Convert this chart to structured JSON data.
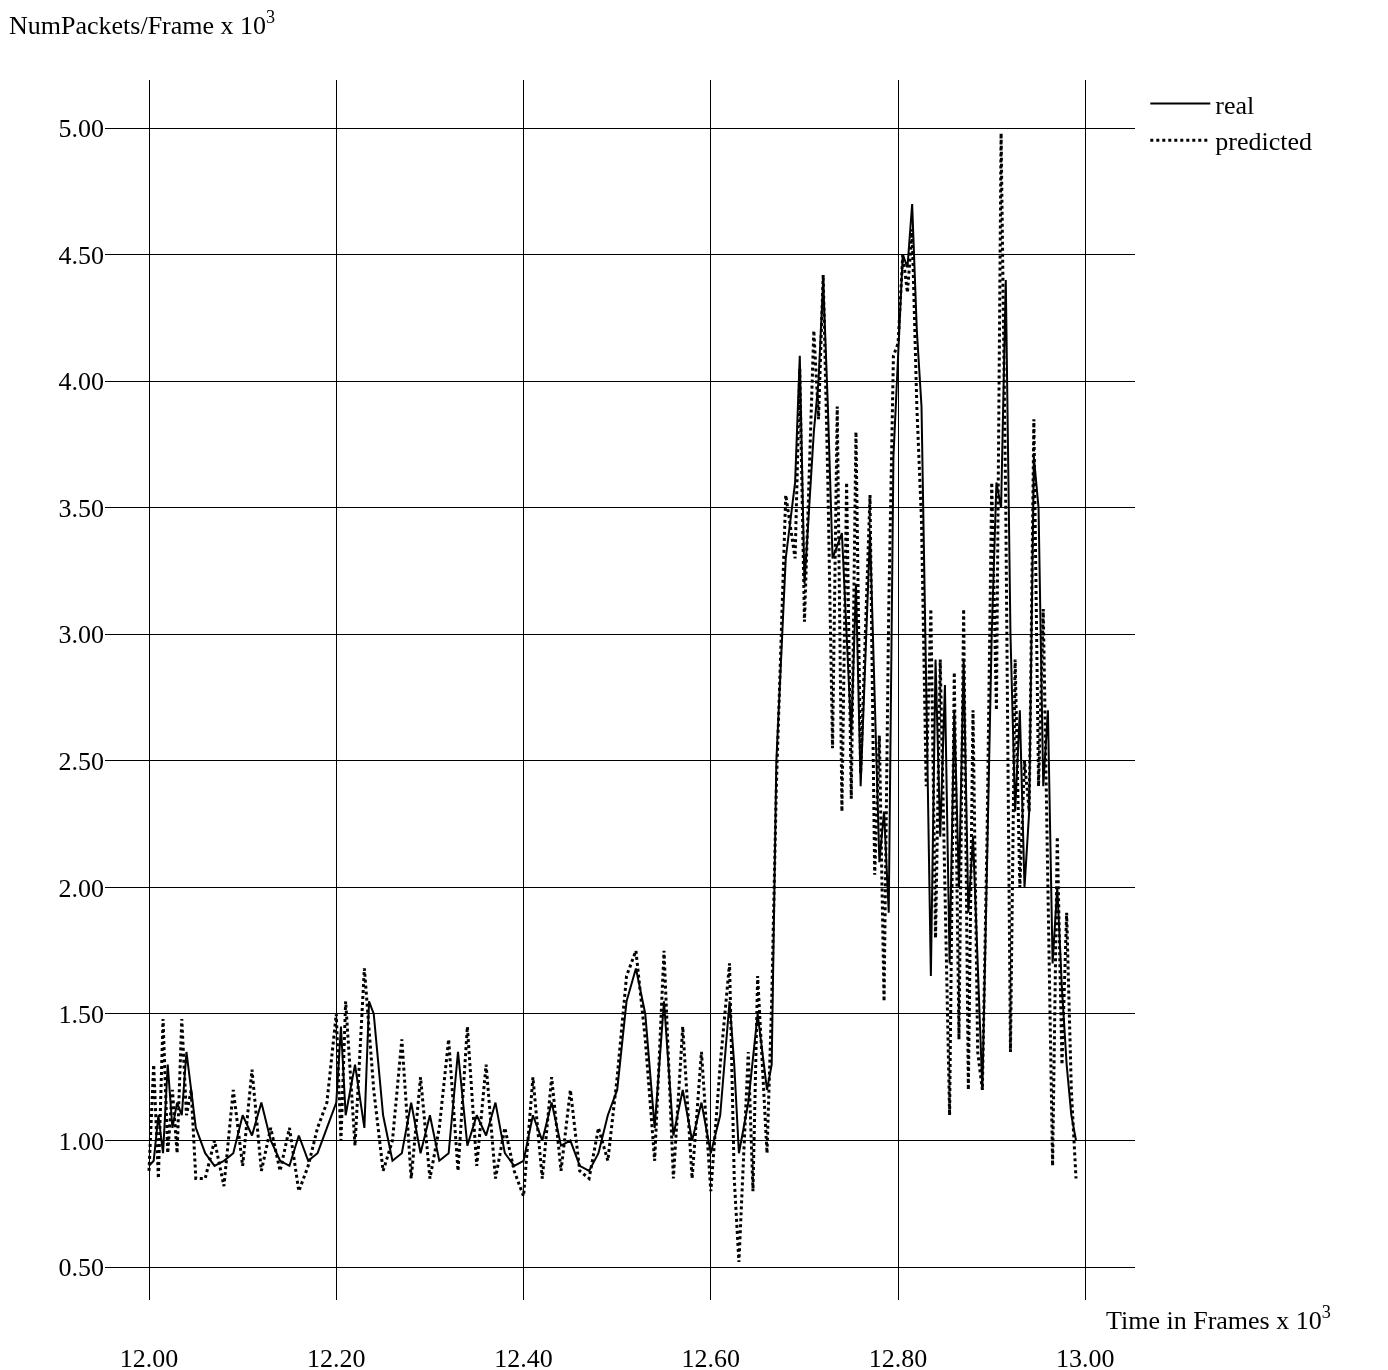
{
  "chart_data": {
    "type": "line",
    "xlabel": "Time in Frames x 10$^{3}$",
    "ylabel": "NumPackets/Frame x 10$^{3}$",
    "xlim": [
      11.953,
      13.053
    ],
    "ylim": [
      0.37,
      5.19
    ],
    "xticks": [
      {
        "value": 12.0,
        "label": "12.00"
      },
      {
        "value": 12.2,
        "label": "12.20"
      },
      {
        "value": 12.4,
        "label": "12.40"
      },
      {
        "value": 12.6,
        "label": "12.60"
      },
      {
        "value": 12.8,
        "label": "12.80"
      },
      {
        "value": 13.0,
        "label": "13.00"
      }
    ],
    "yticks": [
      {
        "value": 0.5,
        "label": "0.50"
      },
      {
        "value": 1.0,
        "label": "1.00"
      },
      {
        "value": 1.5,
        "label": "1.50"
      },
      {
        "value": 2.0,
        "label": "2.00"
      },
      {
        "value": 2.5,
        "label": "2.50"
      },
      {
        "value": 3.0,
        "label": "3.00"
      },
      {
        "value": 3.5,
        "label": "3.50"
      },
      {
        "value": 4.0,
        "label": "4.00"
      },
      {
        "value": 4.5,
        "label": "4.50"
      },
      {
        "value": 5.0,
        "label": "5.00"
      }
    ],
    "grid": true,
    "legend": "top right",
    "marker": "none",
    "x": [
      12.0,
      12.005,
      12.01,
      12.015,
      12.02,
      12.025,
      12.03,
      12.035,
      12.04,
      12.045,
      12.05,
      12.06,
      12.07,
      12.08,
      12.09,
      12.1,
      12.11,
      12.12,
      12.13,
      12.14,
      12.15,
      12.16,
      12.17,
      12.18,
      12.19,
      12.2,
      12.205,
      12.21,
      12.22,
      12.23,
      12.235,
      12.24,
      12.25,
      12.26,
      12.27,
      12.28,
      12.29,
      12.3,
      12.31,
      12.32,
      12.33,
      12.34,
      12.35,
      12.36,
      12.37,
      12.38,
      12.39,
      12.4,
      12.41,
      12.42,
      12.43,
      12.44,
      12.45,
      12.46,
      12.47,
      12.48,
      12.49,
      12.5,
      12.51,
      12.52,
      12.53,
      12.54,
      12.55,
      12.56,
      12.57,
      12.58,
      12.59,
      12.6,
      12.61,
      12.62,
      12.625,
      12.63,
      12.64,
      12.65,
      12.66,
      12.665,
      12.67,
      12.68,
      12.69,
      12.695,
      12.7,
      12.71,
      12.715,
      12.72,
      12.725,
      12.73,
      12.74,
      12.75,
      12.755,
      12.76,
      12.77,
      12.78,
      12.785,
      12.79,
      12.795,
      12.8,
      12.805,
      12.81,
      12.815,
      12.82,
      12.825,
      12.83,
      12.835,
      12.84,
      12.845,
      12.85,
      12.855,
      12.86,
      12.865,
      12.87,
      12.875,
      12.88,
      12.885,
      12.89,
      12.895,
      12.9,
      12.905,
      12.91,
      12.915,
      12.92,
      12.925,
      12.93,
      12.935,
      12.94,
      12.945,
      12.95,
      12.955,
      12.96,
      12.965,
      12.97,
      12.975,
      12.98,
      12.985,
      12.99
    ],
    "series": [
      {
        "name": "real",
        "color": "#000000",
        "line_style": "solid",
        "values": [
          0.9,
          0.92,
          1.1,
          0.95,
          1.3,
          1.05,
          1.15,
          1.1,
          1.35,
          1.2,
          1.05,
          0.95,
          0.9,
          0.92,
          0.95,
          1.1,
          1.02,
          1.15,
          1.0,
          0.92,
          0.9,
          1.02,
          0.92,
          0.95,
          1.05,
          1.15,
          1.45,
          1.1,
          1.3,
          1.05,
          1.55,
          1.5,
          1.1,
          0.92,
          0.95,
          1.15,
          0.95,
          1.1,
          0.92,
          0.95,
          1.35,
          0.98,
          1.1,
          1.02,
          1.15,
          0.95,
          0.9,
          0.92,
          1.1,
          1.0,
          1.15,
          0.98,
          1.0,
          0.9,
          0.88,
          0.95,
          1.1,
          1.2,
          1.55,
          1.68,
          1.5,
          1.05,
          1.55,
          1.02,
          1.2,
          1.0,
          1.15,
          0.95,
          1.1,
          1.55,
          1.3,
          0.95,
          1.15,
          1.5,
          1.2,
          1.3,
          2.5,
          3.3,
          3.6,
          4.1,
          3.2,
          3.8,
          4.0,
          4.4,
          3.9,
          3.3,
          3.4,
          2.6,
          3.2,
          2.4,
          3.4,
          2.1,
          2.3,
          1.9,
          3.7,
          4.1,
          4.5,
          4.45,
          4.7,
          4.2,
          3.9,
          2.8,
          1.65,
          2.9,
          2.2,
          2.8,
          1.7,
          2.7,
          2.0,
          2.9,
          1.9,
          2.2,
          1.7,
          1.2,
          2.1,
          3.0,
          3.6,
          3.5,
          4.4,
          3.0,
          2.3,
          2.7,
          2.0,
          2.3,
          3.7,
          3.5,
          2.4,
          2.7,
          1.7,
          2.0,
          1.6,
          1.3,
          1.1,
          1.0
        ]
      },
      {
        "name": "predicted",
        "color": "#000000",
        "line_style": "dotted",
        "x": [
          12.0,
          12.005,
          12.01,
          12.015,
          12.02,
          12.025,
          12.03,
          12.035,
          12.04,
          12.045,
          12.05,
          12.06,
          12.07,
          12.08,
          12.09,
          12.1,
          12.11,
          12.12,
          12.13,
          12.14,
          12.15,
          12.16,
          12.17,
          12.18,
          12.19,
          12.2,
          12.205,
          12.21,
          12.22,
          12.23,
          12.24,
          12.25,
          12.26,
          12.27,
          12.28,
          12.29,
          12.3,
          12.31,
          12.32,
          12.33,
          12.34,
          12.35,
          12.36,
          12.37,
          12.38,
          12.39,
          12.4,
          12.41,
          12.42,
          12.43,
          12.44,
          12.45,
          12.46,
          12.47,
          12.48,
          12.49,
          12.5,
          12.51,
          12.52,
          12.53,
          12.54,
          12.55,
          12.56,
          12.57,
          12.58,
          12.59,
          12.6,
          12.61,
          12.62,
          12.625,
          12.63,
          12.64,
          12.645,
          12.65,
          12.66,
          12.665,
          12.67,
          12.68,
          12.69,
          12.695,
          12.7,
          12.71,
          12.715,
          12.72,
          12.725,
          12.73,
          12.735,
          12.74,
          12.745,
          12.75,
          12.755,
          12.76,
          12.77,
          12.775,
          12.78,
          12.785,
          12.79,
          12.795,
          12.8,
          12.805,
          12.81,
          12.815,
          12.82,
          12.825,
          12.83,
          12.835,
          12.84,
          12.845,
          12.85,
          12.855,
          12.86,
          12.865,
          12.87,
          12.875,
          12.88,
          12.885,
          12.89,
          12.895,
          12.9,
          12.905,
          12.91,
          12.915,
          12.92,
          12.925,
          12.93,
          12.935,
          12.94,
          12.945,
          12.95,
          12.955,
          12.96,
          12.965,
          12.97,
          12.975,
          12.98,
          12.985,
          12.99
        ],
        "values": [
          0.88,
          1.3,
          0.85,
          1.48,
          0.95,
          1.2,
          0.95,
          1.48,
          1.1,
          1.2,
          0.85,
          0.85,
          1.0,
          0.82,
          1.2,
          0.9,
          1.28,
          0.88,
          1.05,
          0.88,
          1.05,
          0.8,
          0.9,
          1.05,
          1.15,
          1.5,
          1.0,
          1.55,
          0.98,
          1.68,
          1.2,
          0.88,
          1.0,
          1.4,
          0.85,
          1.25,
          0.85,
          1.05,
          1.4,
          0.88,
          1.45,
          0.9,
          1.3,
          0.85,
          1.05,
          0.88,
          0.78,
          1.25,
          0.85,
          1.25,
          0.88,
          1.2,
          0.88,
          0.85,
          1.05,
          0.92,
          1.25,
          1.65,
          1.75,
          1.4,
          0.92,
          1.75,
          0.85,
          1.45,
          0.85,
          1.35,
          0.8,
          1.3,
          1.7,
          0.85,
          0.52,
          1.35,
          0.8,
          1.65,
          0.95,
          1.55,
          2.4,
          3.55,
          3.3,
          4.05,
          3.05,
          4.2,
          3.85,
          4.42,
          3.6,
          2.55,
          3.9,
          2.3,
          3.6,
          2.35,
          3.8,
          2.45,
          3.55,
          2.05,
          2.6,
          1.55,
          3.1,
          4.1,
          4.15,
          4.5,
          4.35,
          4.6,
          3.9,
          3.45,
          2.4,
          3.1,
          1.8,
          2.9,
          2.0,
          1.1,
          2.85,
          1.4,
          3.1,
          1.2,
          2.7,
          1.35,
          1.2,
          2.2,
          3.6,
          2.7,
          4.98,
          3.5,
          1.35,
          2.9,
          2.0,
          2.5,
          2.3,
          3.85,
          2.4,
          3.1,
          2.0,
          0.9,
          2.2,
          1.3,
          1.9,
          1.2,
          0.85
        ]
      }
    ]
  }
}
